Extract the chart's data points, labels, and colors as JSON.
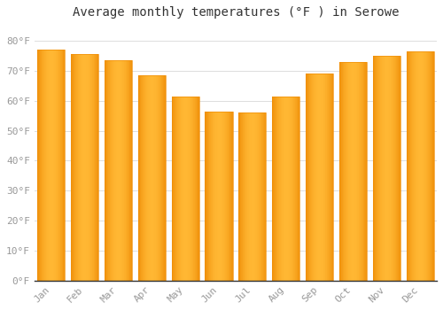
{
  "title": "Average monthly temperatures (°F ) in Serowe",
  "months": [
    "Jan",
    "Feb",
    "Mar",
    "Apr",
    "May",
    "Jun",
    "Jul",
    "Aug",
    "Sep",
    "Oct",
    "Nov",
    "Dec"
  ],
  "values": [
    77,
    75.5,
    73.5,
    68.5,
    61.5,
    56.5,
    56,
    61.5,
    69,
    73,
    75,
    76.5
  ],
  "bar_color_center": "#FFB733",
  "bar_color_edge": "#F0900A",
  "background_color": "#FFFFFF",
  "grid_color": "#DDDDDD",
  "ylim": [
    0,
    85
  ],
  "yticks": [
    0,
    10,
    20,
    30,
    40,
    50,
    60,
    70,
    80
  ],
  "ylabel_suffix": "°F",
  "title_fontsize": 10,
  "tick_fontsize": 8,
  "tick_color": "#999999"
}
